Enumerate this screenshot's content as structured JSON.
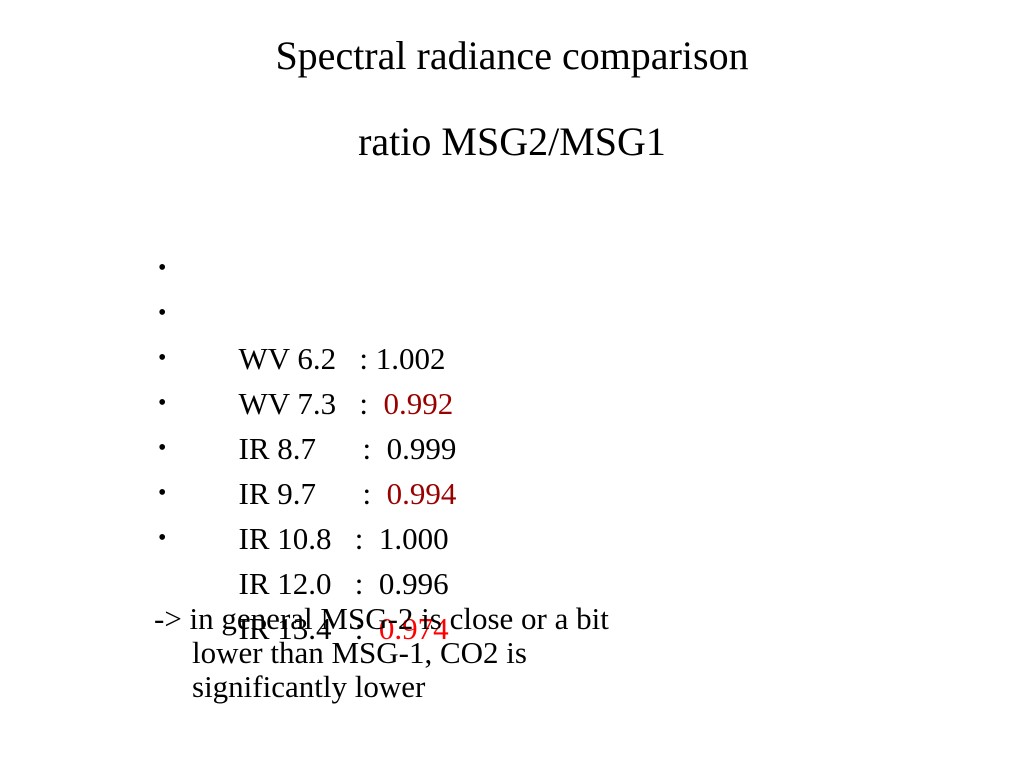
{
  "title": {
    "line1": "Spectral radiance comparison",
    "line2": "ratio MSG2/MSG1"
  },
  "bullet_glyph": "•",
  "items": [
    {
      "name": "WV 6.2",
      "sep": "   : ",
      "value": "1.002",
      "color": "#000000"
    },
    {
      "name": "WV 7.3",
      "sep": "   :  ",
      "value": "0.992",
      "color": "#990000"
    },
    {
      "name": "IR 8.7",
      "sep": "      :  ",
      "value": "0.999",
      "color": "#000000"
    },
    {
      "name": "IR 9.7",
      "sep": "      :  ",
      "value": "0.994",
      "color": "#990000"
    },
    {
      "name": "IR 10.8",
      "sep": "   :  ",
      "value": "1.000",
      "color": "#000000"
    },
    {
      "name": "IR 12.0",
      "sep": "   :  ",
      "value": "0.996",
      "color": "#000000"
    },
    {
      "name": "IR 13.4",
      "sep": "   :  ",
      "value": "0.974",
      "color": "#ff0000"
    }
  ],
  "note": {
    "line1": "-> in general MSG-2 is close or a bit",
    "line2": "lower than MSG-1, CO2 is",
    "line3": "significantly lower"
  }
}
